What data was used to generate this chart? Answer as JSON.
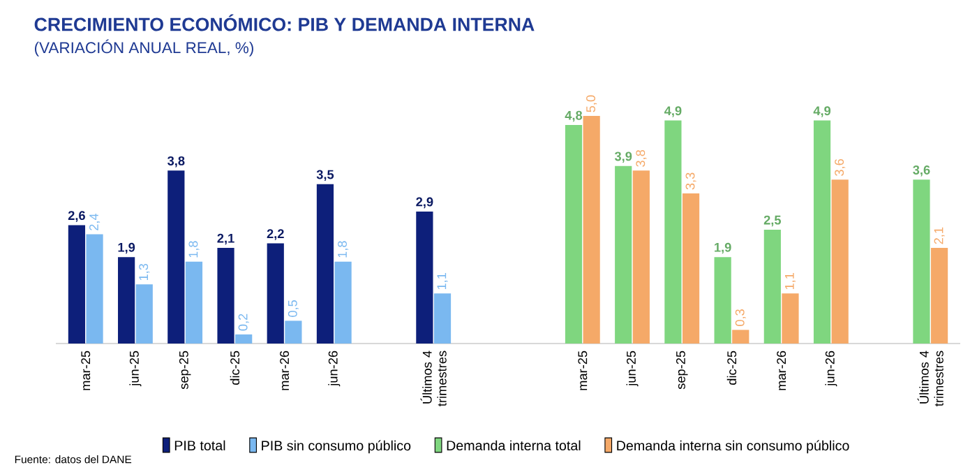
{
  "chart_data": {
    "type": "bar",
    "title": "CRECIMIENTO ECONÓMICO: PIB Y DEMANDA INTERNA",
    "subtitle": "(VARIACIÓN ANUAL REAL, %)",
    "categories": [
      "mar-25",
      "jun-25",
      "sep-25",
      "dic-25",
      "mar-26",
      "jun-26",
      null,
      "Últimos 4 trimestres",
      null,
      null,
      "mar-25",
      "jun-25",
      "sep-25",
      "dic-25",
      "mar-26",
      "jun-26",
      null,
      "Últimos 4 trimestres"
    ],
    "series": [
      {
        "name": "PIB total",
        "color": "#0d1f7a",
        "values": [
          2.6,
          1.9,
          3.8,
          2.1,
          2.2,
          3.5,
          null,
          2.9,
          null,
          null,
          null,
          null,
          null,
          null,
          null,
          null,
          null,
          null
        ],
        "value_labels": [
          "2,6",
          "1,9",
          "3,8",
          "2,1",
          "2,2",
          "3,5",
          null,
          "2,9",
          null,
          null,
          null,
          null,
          null,
          null,
          null,
          null,
          null,
          null
        ]
      },
      {
        "name": "PIB sin consumo público",
        "color": "#7ab8f0",
        "values": [
          2.4,
          1.3,
          1.8,
          0.2,
          0.5,
          1.8,
          null,
          1.1,
          null,
          null,
          null,
          null,
          null,
          null,
          null,
          null,
          null,
          null
        ],
        "value_labels": [
          "2,4",
          "1,3",
          "1,8",
          "0,2",
          "0,5",
          "1,8",
          null,
          "1,1",
          null,
          null,
          null,
          null,
          null,
          null,
          null,
          null,
          null,
          null
        ]
      },
      {
        "name": "Demanda interna total",
        "color": "#7fd67f",
        "values": [
          null,
          null,
          null,
          null,
          null,
          null,
          null,
          null,
          null,
          null,
          4.8,
          3.9,
          4.9,
          1.9,
          2.5,
          4.9,
          null,
          3.6
        ],
        "value_labels": [
          null,
          null,
          null,
          null,
          null,
          null,
          null,
          null,
          null,
          null,
          "4,8",
          "3,9",
          "4,9",
          "1,9",
          "2,5",
          "4,9",
          null,
          "3,6"
        ]
      },
      {
        "name": "Demanda interna sin consumo público",
        "color": "#f5a968",
        "values": [
          null,
          null,
          null,
          null,
          null,
          null,
          null,
          null,
          null,
          null,
          5.0,
          3.8,
          3.3,
          0.3,
          1.1,
          3.6,
          null,
          2.1
        ],
        "value_labels": [
          null,
          null,
          null,
          null,
          null,
          null,
          null,
          null,
          null,
          null,
          "5,0",
          "3,8",
          "3,3",
          "0,3",
          "1,1",
          "3,6",
          null,
          "2,1"
        ]
      }
    ],
    "tick_labels": "x",
    "legend": "bottom",
    "annotations": [
      "Fuente: datos del DANE"
    ]
  }
}
